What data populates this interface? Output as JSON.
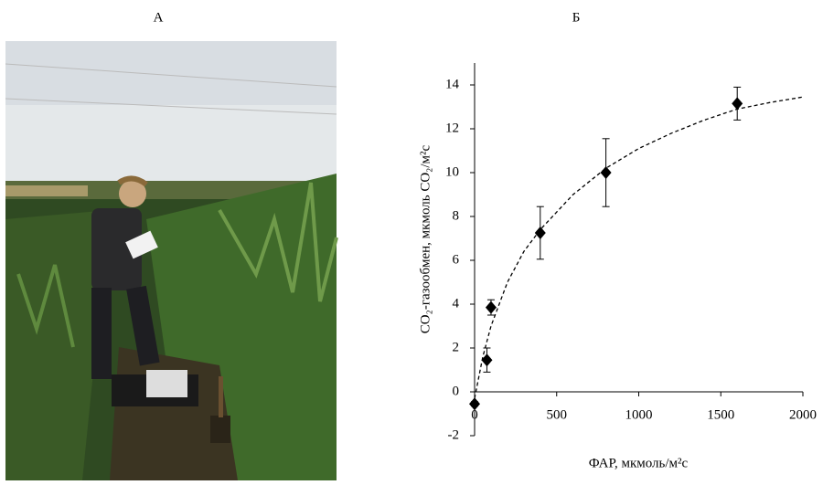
{
  "panels": [
    "А",
    "Б"
  ],
  "chart_data": {
    "type": "scatter",
    "xlabel": "ФАР, мкмоль/м²с",
    "ylabel": "CO₂-газообмен, мкмоль CO₂/м²с",
    "xlim": [
      0,
      2000
    ],
    "ylim": [
      -2,
      15
    ],
    "xticks": [
      0,
      500,
      1000,
      1500,
      2000
    ],
    "yticks": [
      -2,
      0,
      2,
      4,
      6,
      8,
      10,
      12,
      14
    ],
    "series": [
      {
        "x": [
          0,
          75,
          100,
          400,
          800,
          1600
        ],
        "values": [
          -0.55,
          1.45,
          3.85,
          7.25,
          10.0,
          13.15
        ],
        "errors": [
          0.1,
          0.55,
          0.35,
          1.2,
          1.55,
          0.75
        ],
        "color": "#000000",
        "marker": "diamond"
      },
      {
        "x": [
          0,
          50,
          100,
          200,
          300,
          400,
          600,
          800,
          1000,
          1200,
          1400,
          1600,
          1800,
          2000
        ],
        "values": [
          -0.3,
          1.6,
          3.0,
          5.0,
          6.4,
          7.4,
          9.0,
          10.2,
          11.1,
          11.8,
          12.4,
          12.9,
          13.2,
          13.45
        ],
        "color": "#000000",
        "line_style": "dashed"
      }
    ]
  }
}
